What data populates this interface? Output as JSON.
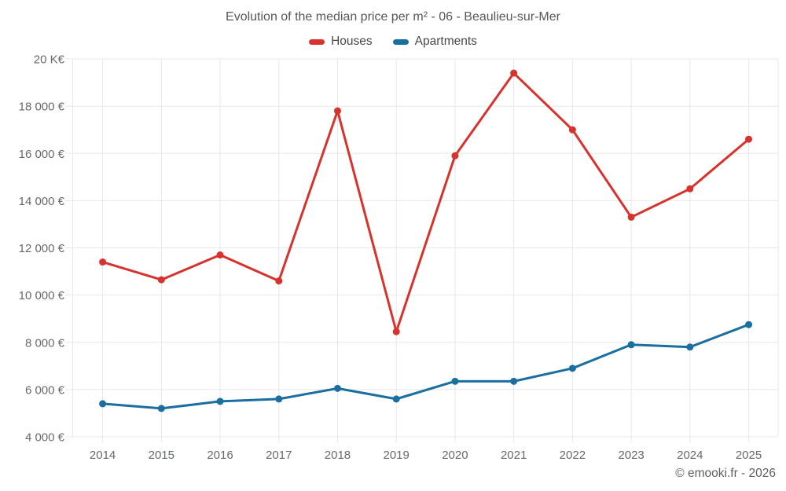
{
  "chart": {
    "title": "Evolution of the median price per m² - 06 - Beaulieu-sur-Mer",
    "footer": "© emooki.fr - 2026"
  },
  "chart_data": {
    "type": "line",
    "title": "Evolution of the median price per m² - 06 - Beaulieu-sur-Mer",
    "x": [
      "2014",
      "2015",
      "2016",
      "2017",
      "2018",
      "2019",
      "2020",
      "2021",
      "2022",
      "2023",
      "2024",
      "2025"
    ],
    "series": [
      {
        "name": "Houses",
        "color": "#d7322d",
        "values": [
          11400,
          10650,
          11700,
          10600,
          17800,
          8450,
          15900,
          19400,
          17000,
          13300,
          14500,
          16600
        ]
      },
      {
        "name": "Apartments",
        "color": "#1a6ea0",
        "values": [
          5400,
          5200,
          5500,
          5600,
          6050,
          5600,
          6350,
          6350,
          6900,
          7900,
          7800,
          8750
        ]
      }
    ],
    "ylim": [
      4000,
      20000
    ],
    "ytick_step": 2000,
    "yticks": [
      {
        "value": 20000,
        "label": "20 K€"
      },
      {
        "value": 18000,
        "label": "18 000 €"
      },
      {
        "value": 16000,
        "label": "16 000 €"
      },
      {
        "value": 14000,
        "label": "14 000 €"
      },
      {
        "value": 12000,
        "label": "12 000 €"
      },
      {
        "value": 10000,
        "label": "10 000 €"
      },
      {
        "value": 8000,
        "label": "8 000 €"
      },
      {
        "value": 6000,
        "label": "6 000 €"
      },
      {
        "value": 4000,
        "label": "4 000 €"
      }
    ],
    "xlabel": "",
    "ylabel": "",
    "grid": true,
    "legend_position": "top",
    "grid_color": "#e8e8e8"
  }
}
